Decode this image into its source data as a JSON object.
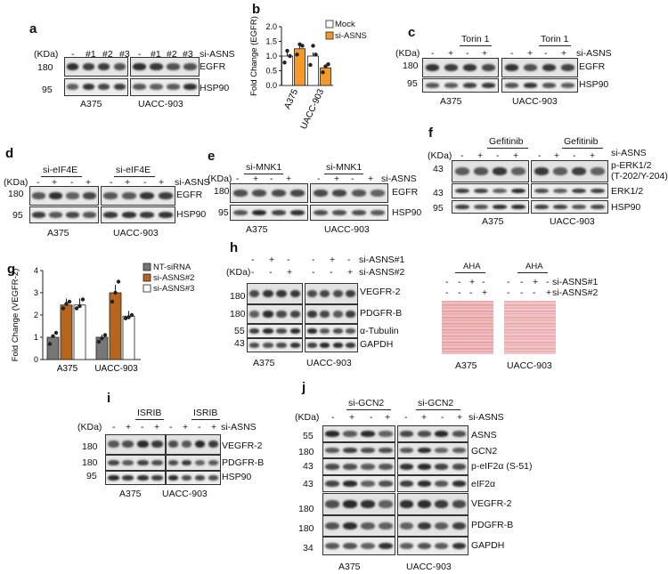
{
  "panels": {
    "a": {
      "letter": "a",
      "kda": "(KDa)",
      "signs": [
        "-",
        "#1",
        "#2",
        "#3"
      ],
      "treatment": "si-ASNS",
      "markers": [
        "180",
        "95"
      ],
      "proteins": [
        "EGFR",
        "HSP90"
      ],
      "cells": [
        "A375",
        "UACC-903"
      ]
    },
    "b": {
      "letter": "b",
      "ylabel": "Fold Change (EGFR)",
      "legend": [
        "Mock",
        "si-ASNS"
      ],
      "yticks": [
        "0.0",
        "0.5",
        "1.0",
        "1.5",
        "2.0"
      ],
      "cells": [
        "A375",
        "UACC-903"
      ]
    },
    "c": {
      "letter": "c",
      "kda": "(KDa)",
      "drug": "Torin 1",
      "signs": [
        "-",
        "+",
        "-",
        "+"
      ],
      "treatment": "si-ASNS",
      "markers": [
        "180",
        "95"
      ],
      "proteins": [
        "EGFR",
        "HSP90"
      ],
      "cells": [
        "A375",
        "UACC-903"
      ]
    },
    "d": {
      "letter": "d",
      "kda": "(KDa)",
      "group": "si-eIF4E",
      "signs": [
        "-",
        "+",
        "-",
        "+"
      ],
      "treatment": "si-ASNS",
      "markers": [
        "180",
        "95"
      ],
      "proteins": [
        "EGFR",
        "HSP90"
      ],
      "cells": [
        "A375",
        "UACC-903"
      ]
    },
    "e": {
      "letter": "e",
      "kda": "(KDa)",
      "group": "si-MNK1",
      "signs": [
        "-",
        "+",
        "-",
        "+"
      ],
      "treatment": "si-ASNS",
      "markers": [
        "180",
        "95"
      ],
      "proteins": [
        "EGFR",
        "HSP90"
      ],
      "cells": [
        "A375",
        "UACC-903"
      ]
    },
    "f": {
      "letter": "f",
      "kda": "(KDa)",
      "drug": "Gefitinib",
      "signs": [
        "-",
        "+",
        "-",
        "+"
      ],
      "treatment": "si-ASNS",
      "markers": [
        "43",
        "43",
        "95"
      ],
      "proteins": [
        "p-ERK1/2",
        "(T-202/Y-204)",
        "ERK1/2",
        "HSP90"
      ],
      "cells": [
        "A375",
        "UACC-903"
      ]
    },
    "g": {
      "letter": "g",
      "ylabel": "Fold Change (VEGFR-2)",
      "legend": [
        "NT-siRNA",
        "si-ASNS#2",
        "si-ASNS#3"
      ],
      "yticks": [
        "0",
        "1",
        "2",
        "3",
        "4"
      ],
      "cells": [
        "A375",
        "UACC-903"
      ]
    },
    "h": {
      "letter": "h",
      "kda": "(KDa)",
      "signs1": [
        "-",
        "+",
        "-",
        "-",
        "+",
        "-"
      ],
      "signs2": [
        "-",
        "-",
        "+",
        "-",
        "-",
        "+"
      ],
      "treatment1": "si-ASNS#1",
      "treatment2": "si-ASNS#2",
      "markers": [
        "180",
        "180",
        "55",
        "43"
      ],
      "proteins": [
        "VEGFR-2",
        "PDGFR-B",
        "α-Tubulin",
        "GAPDH"
      ],
      "cells": [
        "A375",
        "UACC-903"
      ],
      "aha": "AHA"
    },
    "i": {
      "letter": "i",
      "kda": "(KDa)",
      "drug": "ISRIB",
      "signs": [
        "-",
        "+",
        "-",
        "+"
      ],
      "treatment": "si-ASNS",
      "markers": [
        "180",
        "180",
        "95"
      ],
      "proteins": [
        "VEGFR-2",
        "PDGFR-B",
        "HSP90"
      ],
      "cells": [
        "A375",
        "UACC-903"
      ]
    },
    "j": {
      "letter": "j",
      "kda": "(KDa)",
      "group": "si-GCN2",
      "signs": [
        "-",
        "+",
        "-",
        "+"
      ],
      "treatment": "si-ASNS",
      "markers": [
        "55",
        "180",
        "43",
        "43",
        "180",
        "180",
        "34"
      ],
      "proteins": [
        "ASNS",
        "GCN2",
        "p-eIF2α (S-51)",
        "eIF2α",
        "VEGFR-2",
        "PDGFR-B",
        "GAPDH"
      ],
      "cells": [
        "A375",
        "UACC-903"
      ]
    }
  },
  "chart_data": [
    {
      "type": "bar",
      "panel": "b",
      "categories": [
        "A375",
        "UACC-903"
      ],
      "series": [
        {
          "name": "Mock",
          "values": [
            1.0,
            1.0
          ],
          "color": "#ffffff"
        },
        {
          "name": "si-ASNS",
          "values": [
            1.25,
            0.6
          ],
          "color": "#f39a2b"
        }
      ],
      "ylabel": "Fold Change (EGFR)",
      "ylim": [
        0,
        2.0
      ],
      "grid": false,
      "legend": "top-right",
      "points": [
        [
          0.78,
          1.18,
          1.0
        ],
        [
          1.05,
          1.4,
          1.35
        ],
        [
          0.7,
          1.35,
          1.05
        ],
        [
          0.45,
          0.65,
          0.72
        ]
      ]
    },
    {
      "type": "bar",
      "panel": "g",
      "categories": [
        "A375",
        "UACC-903"
      ],
      "series": [
        {
          "name": "NT-siRNA",
          "values": [
            1.0,
            1.0
          ],
          "color": "#777777"
        },
        {
          "name": "si-ASNS#2",
          "values": [
            2.45,
            3.0
          ],
          "color": "#b5651d"
        },
        {
          "name": "si-ASNS#3",
          "values": [
            2.45,
            1.95
          ],
          "color": "#ffffff"
        }
      ],
      "ylabel": "Fold Change (VEGFR-2)",
      "ylim": [
        0,
        4
      ],
      "grid": false,
      "legend": "top-right",
      "points": [
        [
          0.7,
          1.05,
          1.2
        ],
        [
          2.3,
          2.5,
          2.6
        ],
        [
          2.3,
          2.4,
          2.7
        ],
        [
          0.8,
          0.95,
          1.1
        ],
        [
          2.6,
          3.0,
          3.5
        ],
        [
          1.85,
          1.9,
          2.0
        ]
      ]
    }
  ]
}
